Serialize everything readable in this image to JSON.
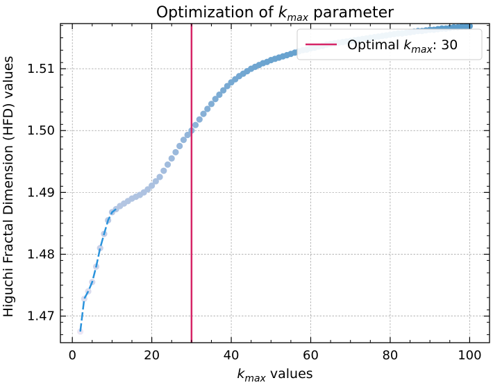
{
  "chart_data": {
    "type": "scatter",
    "title_prefix": "Optimization of ",
    "title_math": "k",
    "title_math_sub": "max",
    "title_suffix": " parameter",
    "xlabel_math": "k",
    "xlabel_math_sub": "max",
    "xlabel_suffix": " values",
    "ylabel": "Higuchi Fractal Dimension (HFD) values",
    "xlim": [
      -3,
      105
    ],
    "ylim": [
      1.4657,
      1.5173
    ],
    "xticks": [
      0,
      20,
      40,
      60,
      80,
      100
    ],
    "yticks": [
      1.47,
      1.48,
      1.49,
      1.5,
      1.51
    ],
    "ytick_labels": [
      "1.47",
      "1.48",
      "1.49",
      "1.50",
      "1.51"
    ],
    "grid": true,
    "legend_position": "top-right",
    "legend": {
      "prefix": "Optimal ",
      "math": "k",
      "math_sub": "max",
      "suffix": ": 30"
    },
    "optimal_k": 30,
    "colors": {
      "optimal_line": "#d62466",
      "dashed_line": "#2a93dc",
      "point_low": "#ece6f4",
      "point_mid": "#a8bfdf",
      "point_high": "#5a9ccb"
    },
    "series": [
      {
        "x": [
          2,
          3,
          4,
          5,
          6,
          7,
          8,
          9,
          10,
          11,
          12,
          13,
          14,
          15,
          16,
          17,
          18,
          19,
          20,
          21,
          22,
          23,
          24,
          25,
          26,
          27,
          28,
          29,
          30,
          31,
          32,
          33,
          34,
          35,
          36,
          37,
          38,
          39,
          40,
          41,
          42,
          43,
          44,
          45,
          46,
          47,
          48,
          49,
          50,
          51,
          52,
          53,
          54,
          55,
          56,
          57,
          58,
          59,
          60,
          61,
          62,
          63,
          64,
          65,
          66,
          67,
          68,
          69,
          70,
          71,
          72,
          73,
          74,
          75,
          76,
          77,
          78,
          79,
          80,
          81,
          82,
          83,
          84,
          85,
          86,
          87,
          88,
          89,
          90,
          91,
          92,
          93,
          94,
          95,
          96,
          97,
          98,
          99,
          100
        ],
        "y": [
          1.4675,
          1.4728,
          1.474,
          1.4755,
          1.478,
          1.481,
          1.4833,
          1.4855,
          1.4868,
          1.4873,
          1.4878,
          1.4882,
          1.4886,
          1.489,
          1.4893,
          1.4896,
          1.49,
          1.4905,
          1.4911,
          1.4918,
          1.4925,
          1.4935,
          1.4945,
          1.4955,
          1.4965,
          1.4975,
          1.4985,
          1.4993,
          1.5,
          1.5009,
          1.5018,
          1.5027,
          1.5035,
          1.5043,
          1.5051,
          1.5058,
          1.5065,
          1.5072,
          1.5078,
          1.5083,
          1.5088,
          1.5092,
          1.5096,
          1.51,
          1.5103,
          1.5106,
          1.5109,
          1.5111,
          1.5114,
          1.5116,
          1.5118,
          1.512,
          1.5122,
          1.5124,
          1.5126,
          1.5128,
          1.513,
          1.5131,
          1.5133,
          1.5134,
          1.5136,
          1.5137,
          1.5139,
          1.514,
          1.5141,
          1.5142,
          1.5143,
          1.5144,
          1.5145,
          1.5146,
          1.5147,
          1.5148,
          1.5149,
          1.515,
          1.5151,
          1.5152,
          1.5153,
          1.5154,
          1.5155,
          1.5156,
          1.5157,
          1.5157,
          1.5158,
          1.5159,
          1.516,
          1.5161,
          1.5161,
          1.5162,
          1.5163,
          1.5163,
          1.5164,
          1.5165,
          1.5165,
          1.5166,
          1.5167,
          1.5167,
          1.5168,
          1.5168,
          1.5169
        ]
      }
    ],
    "dashed_segment_x": [
      2,
      11
    ]
  }
}
